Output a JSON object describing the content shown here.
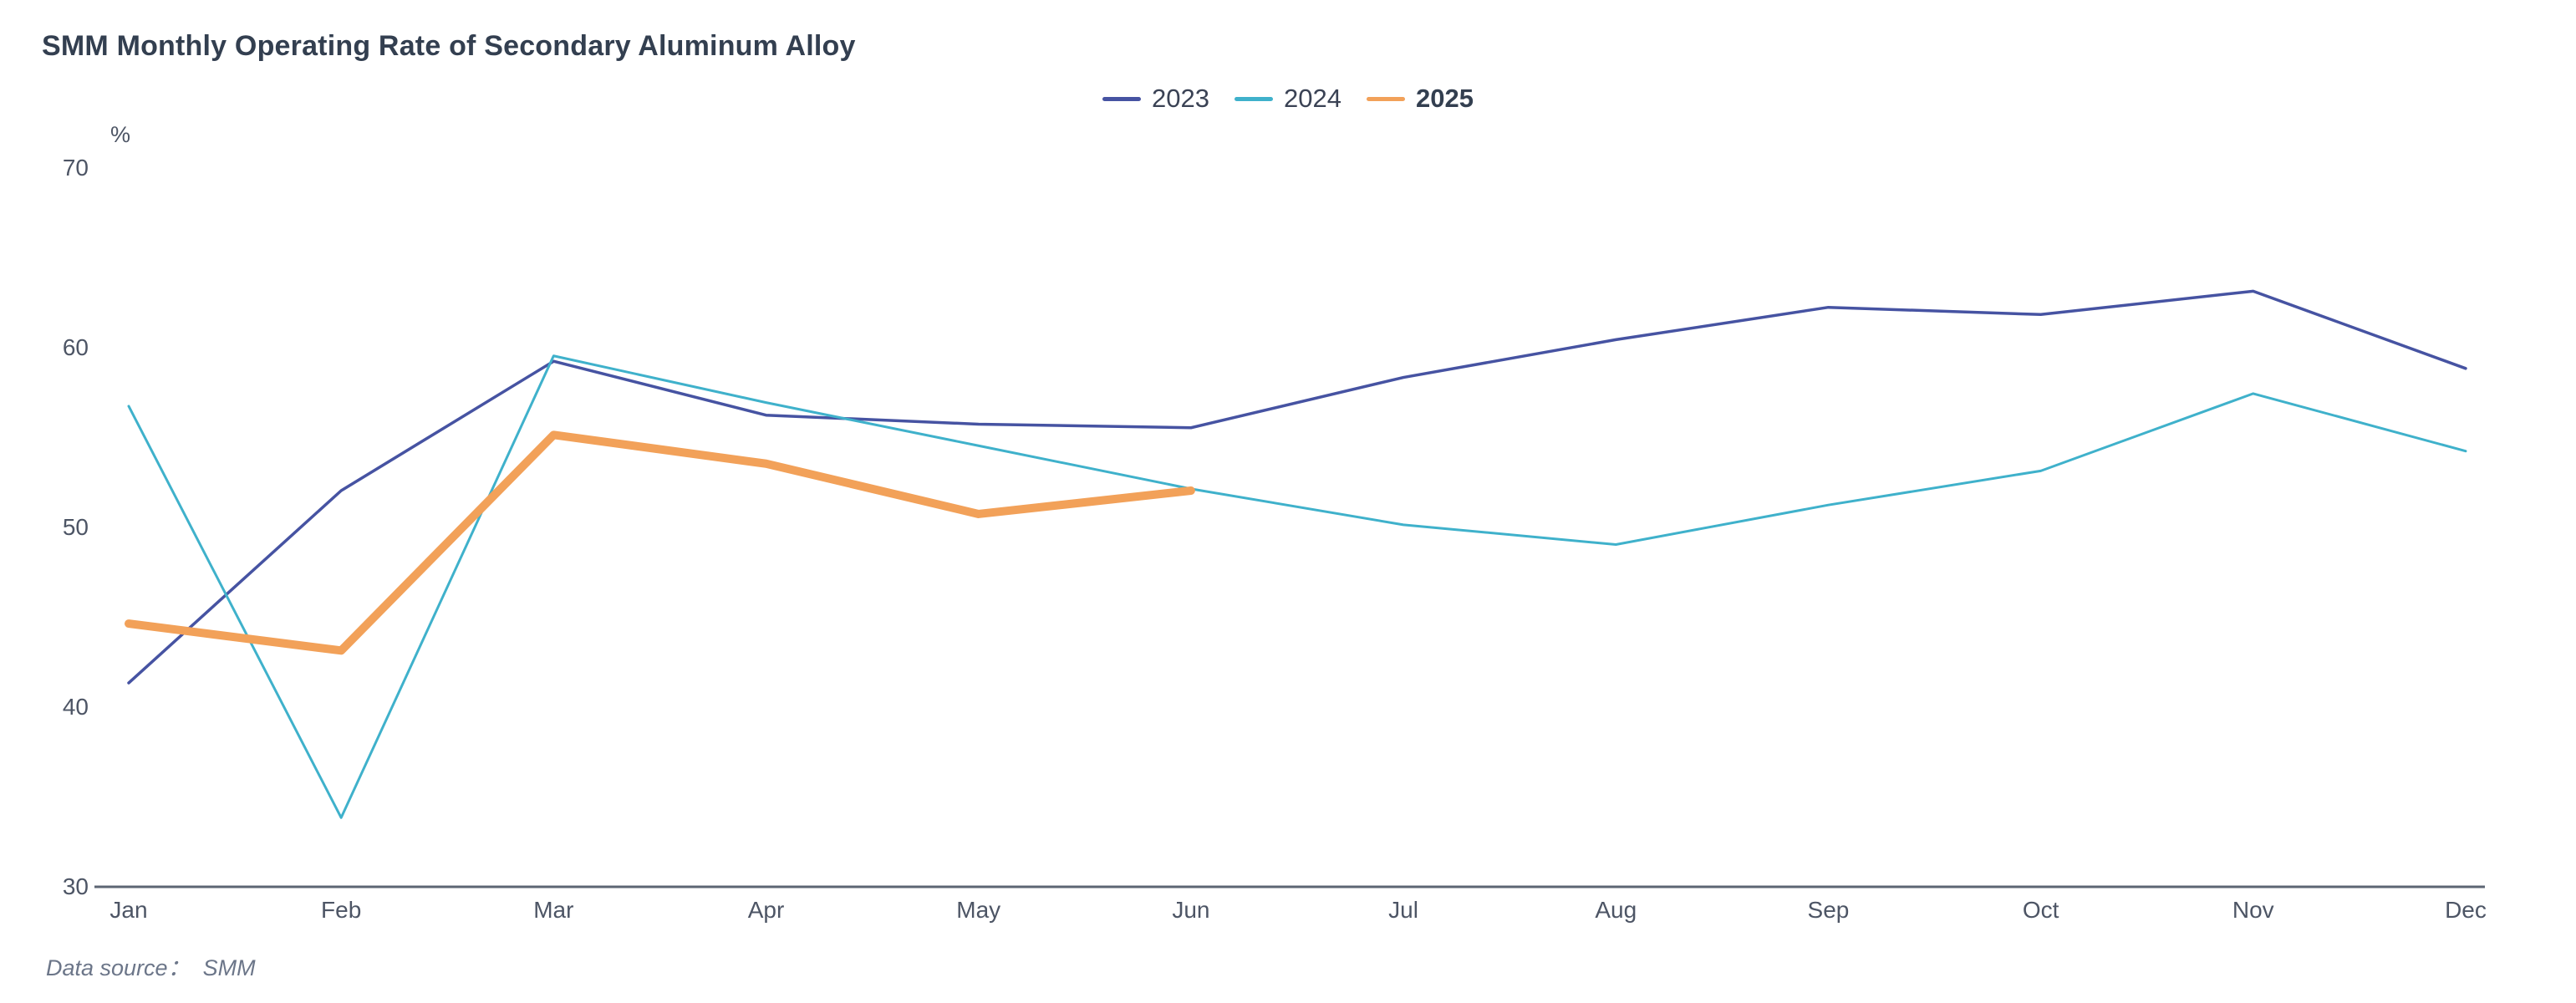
{
  "title": "SMM Monthly Operating Rate of Secondary Aluminum Alloy",
  "unit_label": "%",
  "source_note": "Data source：  SMM",
  "colors": {
    "title_text": "#333F50",
    "axis_text": "#4D5565",
    "axis_line": "#5C6573",
    "legend_text": "#3A4254",
    "series_2023": "#4653A2",
    "series_2024": "#3FB1CB",
    "series_2025": "#F2A159"
  },
  "legend": {
    "items": [
      {
        "label": "2023",
        "color": "#4653A2",
        "bold": false
      },
      {
        "label": "2024",
        "color": "#3FB1CB",
        "bold": false
      },
      {
        "label": "2025",
        "color": "#F2A159",
        "bold": true
      }
    ]
  },
  "chart_data": {
    "type": "line",
    "title": "SMM Monthly Operating Rate of Secondary Aluminum Alloy",
    "unit": "%",
    "xlabel": "",
    "ylabel": "%",
    "categories": [
      "Jan",
      "Feb",
      "Mar",
      "Apr",
      "May",
      "Jun",
      "Jul",
      "Aug",
      "Sep",
      "Oct",
      "Nov",
      "Dec"
    ],
    "ylim": [
      30,
      70
    ],
    "yticks": [
      30,
      40,
      50,
      60,
      70
    ],
    "grid": false,
    "legend_position": "top-center",
    "series": [
      {
        "name": "2023",
        "color": "#4653A2",
        "line_width": 3.5,
        "values": [
          41.3,
          52.0,
          59.2,
          56.2,
          55.7,
          55.5,
          58.3,
          60.4,
          62.2,
          61.8,
          63.1,
          58.8
        ]
      },
      {
        "name": "2024",
        "color": "#3FB1CB",
        "line_width": 3,
        "values": [
          56.7,
          33.8,
          59.5,
          56.9,
          54.5,
          52.1,
          50.1,
          49.0,
          51.2,
          53.1,
          57.4,
          54.2
        ]
      },
      {
        "name": "2025",
        "color": "#F2A159",
        "line_width": 10,
        "values": [
          44.6,
          43.1,
          55.1,
          53.5,
          50.7,
          52.0
        ]
      }
    ],
    "source": "Data source：  SMM"
  }
}
